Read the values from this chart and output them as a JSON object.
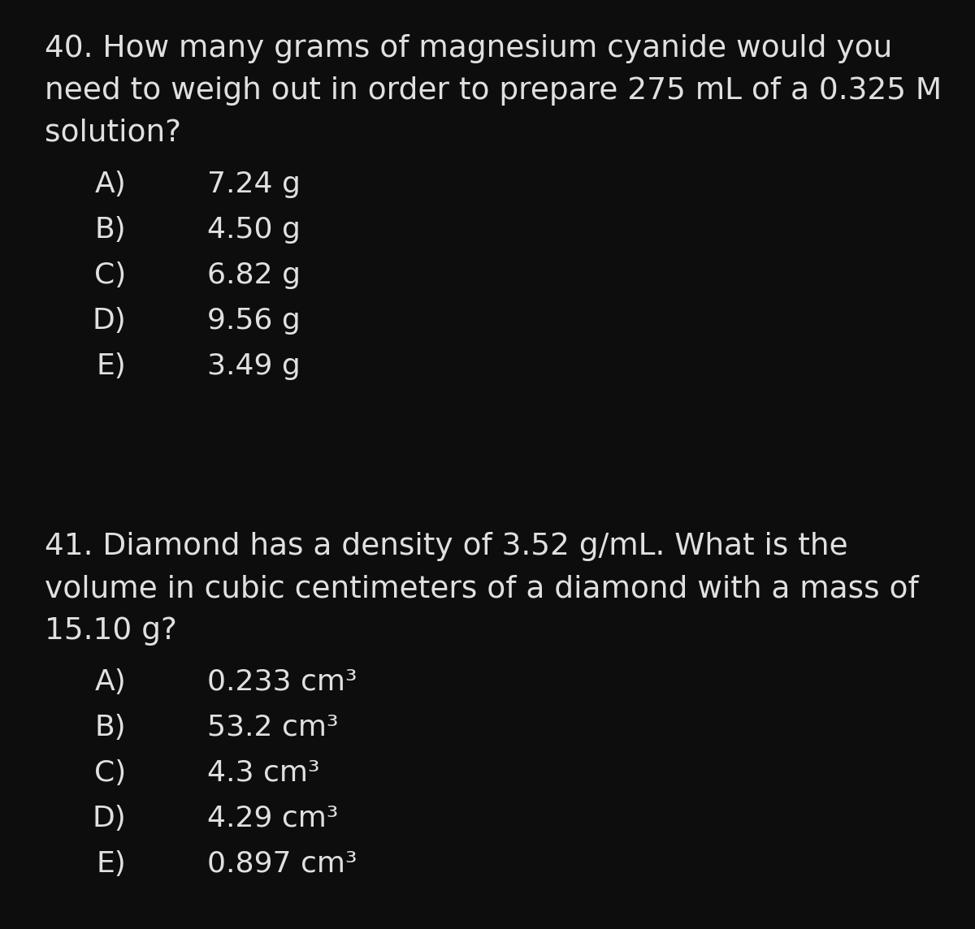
{
  "background_color": "#0d0d0d",
  "text_color": "#e0e0e0",
  "font_size_question": 27,
  "font_size_answer": 26,
  "font_family": "Georgia",
  "q1": {
    "question_lines": [
      "40. How many grams of magnesium cyanide would you",
      "need to weigh out in order to prepare 275 mL of a 0.325 M",
      "solution?"
    ],
    "answers": [
      [
        "A)",
        "7.24 g"
      ],
      [
        "B)",
        "4.50 g"
      ],
      [
        "C)",
        "6.82 g"
      ],
      [
        "D)",
        "9.56 g"
      ],
      [
        "E)",
        "3.49 g"
      ]
    ]
  },
  "q2": {
    "question_lines": [
      "41. Diamond has a density of 3.52 g/mL. What is the",
      "volume in cubic centimeters of a diamond with a mass of",
      "15.10 g?"
    ],
    "answers": [
      [
        "A)",
        "0.233 cm³"
      ],
      [
        "B)",
        "53.2 cm³"
      ],
      [
        "C)",
        "4.3 cm³"
      ],
      [
        "D)",
        "4.29 cm³"
      ],
      [
        "E)",
        "0.897 cm³"
      ]
    ]
  }
}
